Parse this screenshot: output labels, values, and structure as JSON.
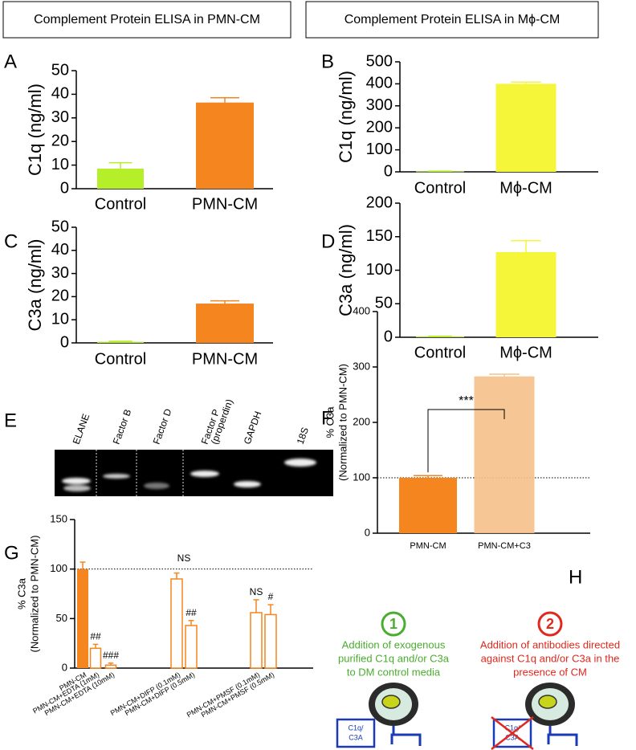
{
  "headers": [
    "Complement Protein ELISA in PMN-CM",
    "Complement Protein ELISA in Mϕ-CM"
  ],
  "chart_data": [
    {
      "type": "bar",
      "panel": "A",
      "ylabel": [
        "C1q (ng/ml)"
      ],
      "categories": [
        "Control",
        "PMN-CM"
      ],
      "values": [
        8.5,
        36.5
      ],
      "errors": [
        2.5,
        2
      ],
      "colors": [
        "#b5ef2a",
        "#f5861f"
      ],
      "filled": [
        true,
        true
      ],
      "ylim": [
        0,
        50
      ],
      "yticks": [
        0,
        10,
        20,
        30,
        40,
        50
      ]
    },
    {
      "type": "bar",
      "panel": "B",
      "ylabel": [
        "C1q (ng/ml)"
      ],
      "categories": [
        "Control",
        "Mϕ-CM"
      ],
      "values": [
        2,
        400
      ],
      "errors": [
        1,
        8
      ],
      "colors": [
        "#b5ef2a",
        "#f5f53a"
      ],
      "filled": [
        true,
        true
      ],
      "ylim": [
        0,
        500
      ],
      "yticks": [
        0,
        100,
        200,
        300,
        400,
        500
      ]
    },
    {
      "type": "bar",
      "panel": "C",
      "ylabel": [
        "C3a (ng/ml)"
      ],
      "categories": [
        "Control",
        "PMN-CM"
      ],
      "values": [
        0.5,
        17
      ],
      "errors": [
        0.2,
        1.2
      ],
      "colors": [
        "#b5ef2a",
        "#f5861f"
      ],
      "filled": [
        true,
        true
      ],
      "ylim": [
        0,
        50
      ],
      "yticks": [
        0,
        10,
        20,
        30,
        40,
        50
      ]
    },
    {
      "type": "bar",
      "panel": "D",
      "ylabel": [
        "C3a (ng/ml)"
      ],
      "categories": [
        "Control",
        "Mϕ-CM"
      ],
      "values": [
        1,
        127
      ],
      "errors": [
        0.5,
        17
      ],
      "colors": [
        "#b5ef2a",
        "#f5f53a"
      ],
      "filled": [
        true,
        true
      ],
      "ylim": [
        0,
        200
      ],
      "yticks": [
        0,
        50,
        100,
        150,
        200
      ]
    },
    {
      "type": "bar",
      "panel": "F",
      "ylabel": [
        "% C3a",
        "(Normalized to PMN-CM)"
      ],
      "categories": [
        "PMN-CM",
        "PMN-CM+C3"
      ],
      "values": [
        100,
        283
      ],
      "errors": [
        4,
        4
      ],
      "colors": [
        "#f5861f",
        "#f5c08a"
      ],
      "filled": [
        true,
        true
      ],
      "ylim": [
        0,
        400
      ],
      "yticks": [
        0,
        100,
        200,
        300,
        400
      ],
      "hline": 100,
      "significance": "***"
    },
    {
      "type": "bar",
      "panel": "G",
      "ylabel": [
        "% C3a",
        "(Normalized to PMN-CM)"
      ],
      "categories": [
        "PMN-CM",
        "PMN-CM+EDTA (1mM)",
        "PMN-CM+EDTA (10mM)",
        "PMN-CM+DIFP (0.1mM)",
        "PMN-CM+DIFP (0.5mM)",
        "PMN-CM+PMSF (0.1mM)",
        "PMN-CM+PMSF (0.5mM)"
      ],
      "values": [
        100,
        20,
        3,
        90,
        43,
        56,
        54
      ],
      "errors": [
        7,
        4,
        2,
        6,
        5,
        13,
        10
      ],
      "colors": [
        "#f5861f",
        "#f5861f",
        "#f5861f",
        "#f5861f",
        "#f5861f",
        "#f5861f",
        "#f5861f"
      ],
      "filled": [
        true,
        false,
        false,
        false,
        false,
        false,
        false
      ],
      "bar_labels": [
        null,
        "##",
        "###",
        null,
        "##",
        "NS",
        "#"
      ],
      "group_label": "NS",
      "ylim": [
        0,
        150
      ],
      "yticks": [
        0,
        50,
        100,
        150
      ],
      "hline": 100
    }
  ],
  "gel": {
    "panel": "E",
    "lanes": [
      [
        "ELANE"
      ],
      [
        "Factor B"
      ],
      [
        "Factor D"
      ],
      [
        "Factor P",
        "(properdin)"
      ],
      [
        "GAPDH"
      ],
      [
        "18S"
      ]
    ]
  },
  "diagram": {
    "panel": "H",
    "steps": [
      {
        "number": "1",
        "lines": [
          "Addition of exogenous",
          "purified C1q and/or C3a",
          "to DM control media"
        ]
      },
      {
        "number": "2",
        "lines": [
          "Addition of antibodies directed",
          "against C1q and/or C3a in the",
          "presence of CM"
        ]
      }
    ],
    "box_label": [
      "C1q/",
      "C3A"
    ]
  }
}
